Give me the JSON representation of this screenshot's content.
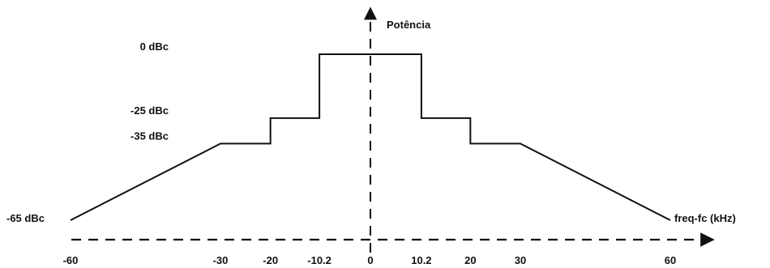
{
  "chart_data": {
    "type": "line",
    "title": "",
    "xlabel": "freq-fc (kHz)",
    "ylabel": "Potência",
    "x_ticks": [
      {
        "value": -60,
        "label": "-60"
      },
      {
        "value": -30,
        "label": "-30"
      },
      {
        "value": -20,
        "label": "-20"
      },
      {
        "value": -10.2,
        "label": "-10.2"
      },
      {
        "value": 0,
        "label": "0"
      },
      {
        "value": 10.2,
        "label": "10.2"
      },
      {
        "value": 20,
        "label": "20"
      },
      {
        "value": 30,
        "label": "30"
      },
      {
        "value": 60,
        "label": "60"
      }
    ],
    "y_ticks": [
      {
        "value": 0,
        "label": "0 dBc"
      },
      {
        "value": -25,
        "label": "-25 dBc"
      },
      {
        "value": -35,
        "label": "-35 dBc"
      },
      {
        "value": -65,
        "label": "-65 dBc"
      }
    ],
    "series": [
      {
        "x": [
          -60,
          -30,
          -20,
          -20,
          -10.2,
          -10.2,
          10.2,
          10.2,
          20,
          20,
          30,
          60
        ],
        "y": [
          -65,
          -35,
          -35,
          -25,
          -25,
          0,
          0,
          -25,
          -25,
          -35,
          -35,
          -65
        ]
      }
    ],
    "xlim": [
      -60,
      60
    ],
    "ylim": [
      -65,
      0
    ],
    "axes_style": "dashed",
    "grid": false,
    "colors": {
      "line": "#111111",
      "axis": "#111111",
      "text": "#111111",
      "background": "#ffffff"
    }
  }
}
